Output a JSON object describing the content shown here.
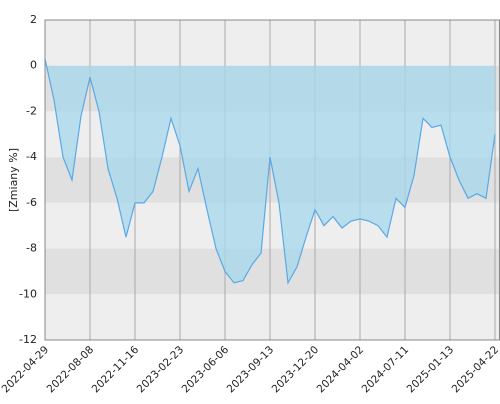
{
  "chart_data": {
    "type": "area",
    "y_label": "[Zmiany %]",
    "x": [
      "2022-04-29",
      "2022-05-19",
      "2022-06-08",
      "2022-06-28",
      "2022-07-18",
      "2022-08-08",
      "2022-08-28",
      "2022-09-17",
      "2022-10-07",
      "2022-10-27",
      "2022-11-16",
      "2022-12-06",
      "2022-12-26",
      "2023-01-15",
      "2023-02-04",
      "2023-02-23",
      "2023-03-15",
      "2023-04-04",
      "2023-04-24",
      "2023-05-16",
      "2023-06-06",
      "2023-06-26",
      "2023-07-16",
      "2023-08-05",
      "2023-08-25",
      "2023-09-13",
      "2023-10-03",
      "2023-10-23",
      "2023-11-12",
      "2023-12-01",
      "2023-12-20",
      "2024-01-09",
      "2024-01-29",
      "2024-02-18",
      "2024-03-10",
      "2024-04-02",
      "2024-04-22",
      "2024-05-12",
      "2024-06-01",
      "2024-06-21",
      "2024-07-11",
      "2024-08-17",
      "2024-09-23",
      "2024-10-30",
      "2024-12-06",
      "2025-01-13",
      "2025-02-02",
      "2025-02-22",
      "2025-03-14",
      "2025-04-03",
      "2025-04-22"
    ],
    "series": [
      {
        "color": "#5aa9e6",
        "values": [
          0.3,
          -1.5,
          -4,
          -5,
          -2.2,
          -0.5,
          -2,
          -4.5,
          -5.8,
          -7.5,
          -6,
          -6,
          -5.5,
          -4,
          -2.3,
          -3.5,
          -5.5,
          -4.5,
          -6.3,
          -8,
          -9,
          -9.5,
          -9.4,
          -8.7,
          -8.2,
          -4,
          -6,
          -9.5,
          -8.8,
          -7.5,
          -6.3,
          -7,
          -6.6,
          -7.1,
          -6.8,
          -6.7,
          -6.8,
          -7,
          -7.5,
          -5.8,
          -6.2,
          -4.8,
          -2.3,
          -2.7,
          -2.6,
          -4,
          -5,
          -5.8,
          -5.6,
          -5.8,
          -3
        ]
      }
    ],
    "xticks": [
      "2022-04-29",
      "2022-08-08",
      "2022-11-16",
      "2023-02-23",
      "2023-06-06",
      "2023-09-13",
      "2023-12-20",
      "2024-04-02",
      "2024-07-11",
      "2025-01-13",
      "2025-04-22"
    ],
    "ylim": [
      -12,
      2
    ],
    "yticks": [
      -12,
      -10,
      -8,
      -6,
      -4,
      -2,
      0,
      2
    ],
    "grid": true,
    "area_color": "#a6d8ec"
  }
}
